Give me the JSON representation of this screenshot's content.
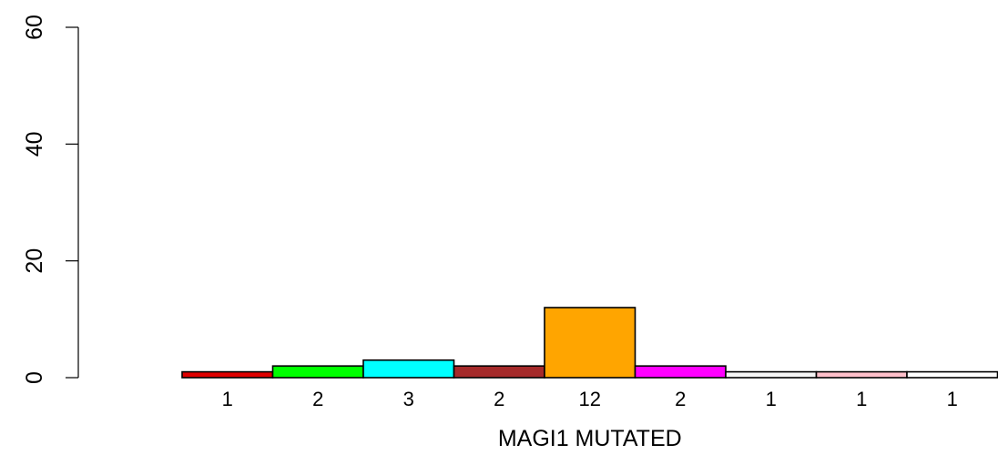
{
  "chart_data": {
    "type": "bar",
    "title": "",
    "xlabel": "MAGI1 MUTATED",
    "ylabel": "",
    "ylim": [
      0,
      60
    ],
    "yticks": [
      0,
      20,
      40,
      60
    ],
    "categories": [
      "1",
      "2",
      "3",
      "2",
      "12",
      "2",
      "1",
      "1",
      "1"
    ],
    "values": [
      1,
      2,
      3,
      2,
      12,
      2,
      1,
      1,
      1
    ],
    "colors": [
      "#DF0000",
      "#00FF00",
      "#00FFFF",
      "#A52A2A",
      "#FFA500",
      "#FF00FF",
      "#F5F5F5",
      "#FFC0CB",
      "#FFFFFF"
    ],
    "grid": false,
    "legend": "none"
  }
}
